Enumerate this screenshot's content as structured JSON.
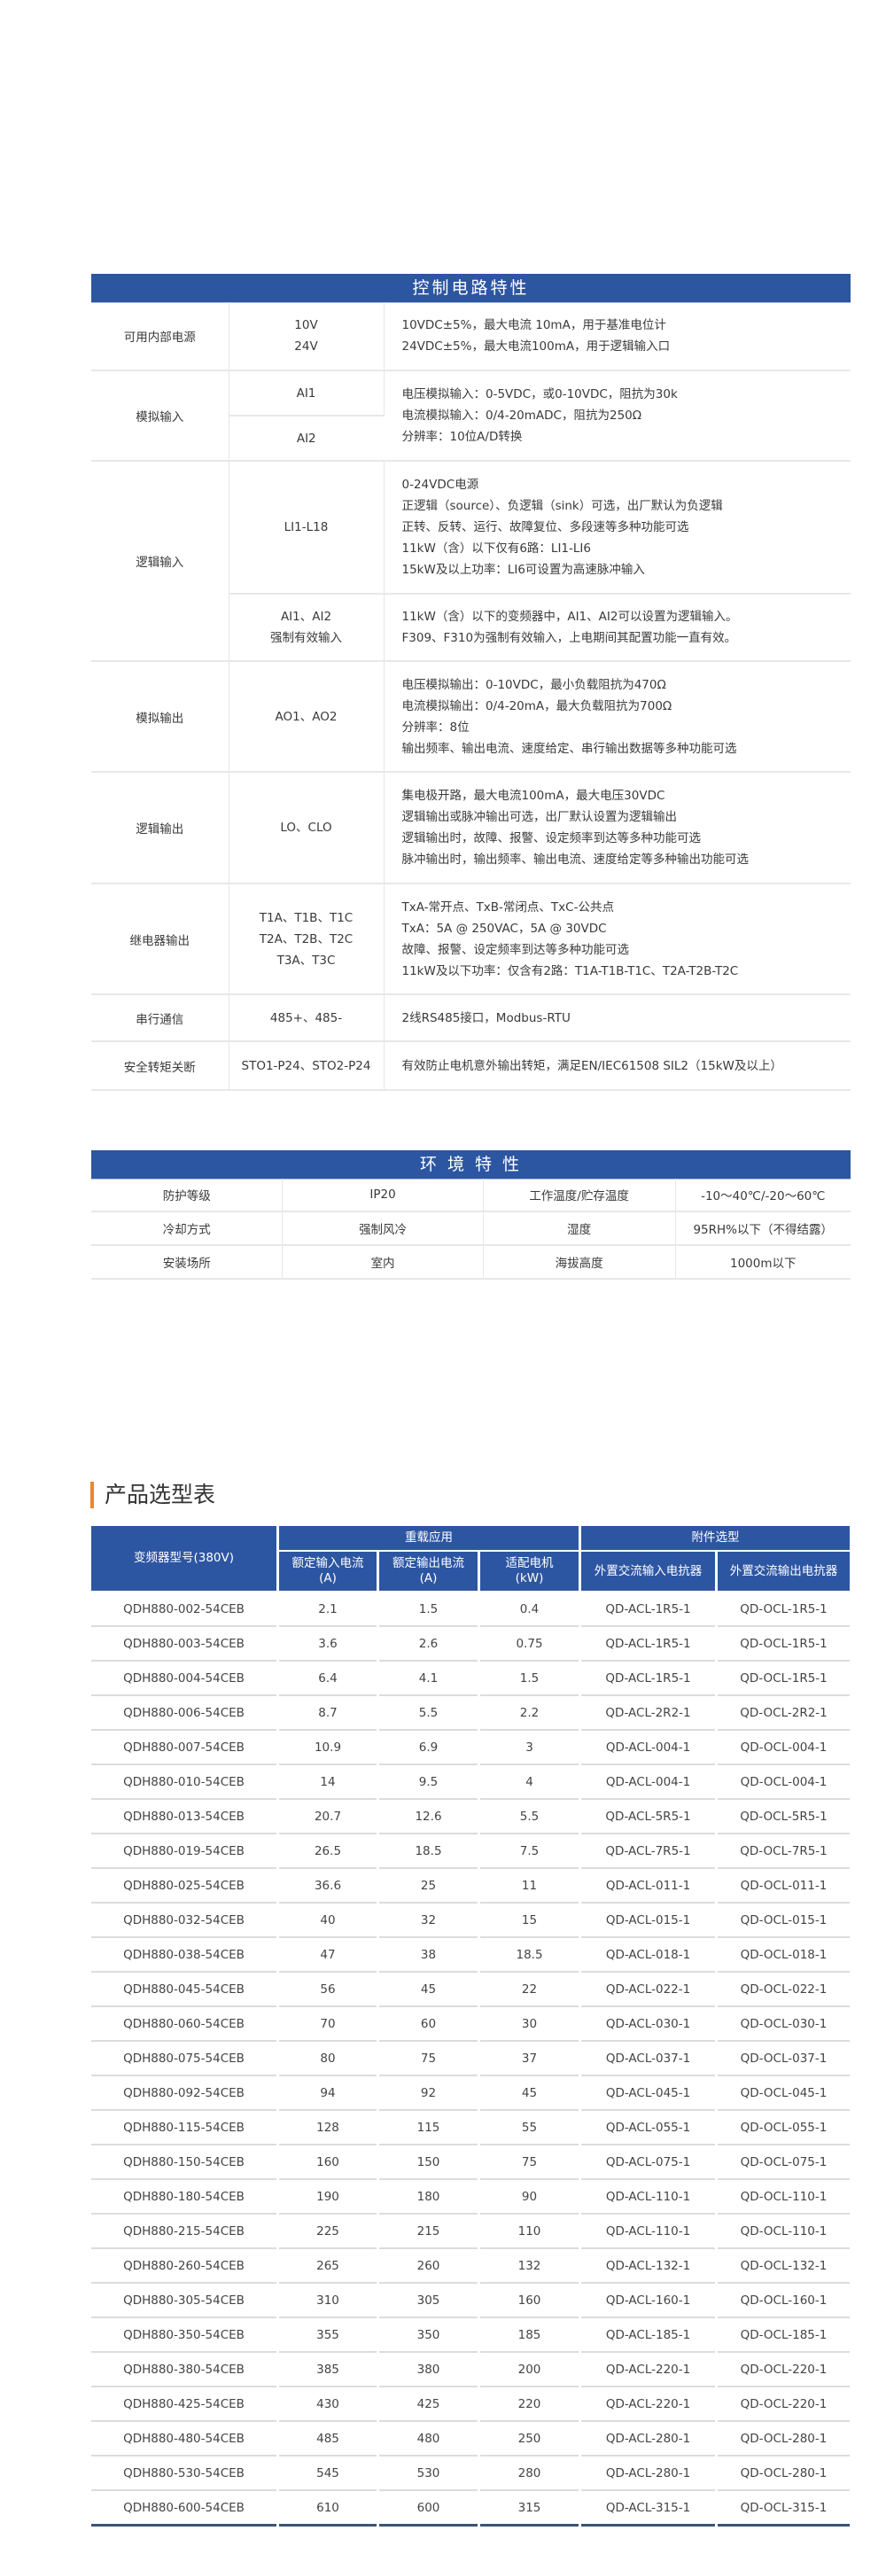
{
  "control": {
    "title": "控制电路特性",
    "power": {
      "label": "可用内部电源",
      "sub": [
        "10V",
        "24V"
      ],
      "desc": [
        "10VDC±5%，最大电流 10mA，用于基准电位计",
        "24VDC±5%，最大电流100mA，用于逻辑输入口"
      ]
    },
    "analog_in": {
      "label": "模拟输入",
      "sub": [
        "AI1",
        "AI2"
      ],
      "desc": [
        "电压模拟输入：0-5VDC，或0-10VDC，阻抗为30k",
        "电流模拟输入：0/4-20mADC，阻抗为250Ω",
        "分辨率：10位A/D转换"
      ]
    },
    "logic_in": {
      "label": "逻辑输入",
      "li": {
        "sub": "LI1-L18",
        "desc": [
          "0-24VDC电源",
          "正逻辑（source）、负逻辑（sink）可选，出厂默认为负逻辑",
          "正转、反转、运行、故障复位、多段速等多种功能可选",
          "11kW（含）以下仅有6路：LI1-LI6",
          "15kW及以上功率：LI6可设置为高速脉冲输入"
        ]
      },
      "ai": {
        "sub": [
          "AI1、AI2",
          "强制有效输入"
        ],
        "desc": [
          "11kW（含）以下的变频器中，AI1、AI2可以设置为逻辑输入。",
          "F309、F310为强制有效输入，上电期间其配置功能一直有效。"
        ]
      }
    },
    "analog_out": {
      "label": "模拟输出",
      "sub": "AO1、AO2",
      "desc": [
        "电压模拟输出：0-10VDC，最小负载阻抗为470Ω",
        "电流模拟输出：0/4-20mA，最大负载阻抗为700Ω",
        "分辨率：8位",
        "输出频率、输出电流、速度给定、串行输出数据等多种功能可选"
      ]
    },
    "logic_out": {
      "label": "逻辑输出",
      "sub": "LO、CLO",
      "desc": [
        "集电极开路，最大电流100mA，最大电压30VDC",
        "逻辑输出或脉冲输出可选，出厂默认设置为逻辑输出",
        "逻辑输出时，故障、报警、设定频率到达等多种功能可选",
        "脉冲输出时，输出频率、输出电流、速度给定等多种输出功能可选"
      ]
    },
    "relay": {
      "label": "继电器输出",
      "sub": [
        "T1A、T1B、T1C",
        "T2A、T2B、T2C",
        "T3A、T3C"
      ],
      "desc": [
        "TxA-常开点、TxB-常闭点、TxC-公共点",
        "TxA：5A @ 250VAC，5A @ 30VDC",
        "故障、报警、设定频率到达等多种功能可选",
        "11kW及以下功率：仅含有2路：T1A-T1B-T1C、T2A-T2B-T2C"
      ]
    },
    "serial": {
      "label": "串行通信",
      "sub": "485+、485-",
      "desc": "2线RS485接口，Modbus-RTU"
    },
    "safety": {
      "label": "安全转矩关断",
      "sub": "STO1-P24、STO2-P24",
      "desc": "有效防止电机意外输出转矩，满足EN/IEC61508 SIL2（15kW及以上）"
    }
  },
  "environment": {
    "title": "环 境 特 性",
    "rows": [
      [
        "防护等级",
        "IP20",
        "工作温度/贮存温度",
        "-10～40℃/-20～60℃"
      ],
      [
        "冷却方式",
        "强制风冷",
        "湿度",
        "95RH%以下（不得结露）"
      ],
      [
        "安装场所",
        "室内",
        "海拔高度",
        "1000m以下"
      ]
    ]
  },
  "selection": {
    "title": "产品选型表",
    "header": {
      "model": "变频器型号(380V)",
      "group_heavy": "重载应用",
      "group_acc": "附件选型",
      "cols": [
        [
          "额定输入电流",
          "(A)"
        ],
        [
          "额定输出电流",
          "(A)"
        ],
        [
          "适配电机",
          "(kW)"
        ],
        [
          "外置交流输入电抗器"
        ],
        [
          "外置交流输出电抗器"
        ]
      ]
    },
    "rows": [
      [
        "QDH880-002-54CEB",
        "2.1",
        "1.5",
        "0.4",
        "QD-ACL-1R5-1",
        "QD-OCL-1R5-1"
      ],
      [
        "QDH880-003-54CEB",
        "3.6",
        "2.6",
        "0.75",
        "QD-ACL-1R5-1",
        "QD-OCL-1R5-1"
      ],
      [
        "QDH880-004-54CEB",
        "6.4",
        "4.1",
        "1.5",
        "QD-ACL-1R5-1",
        "QD-OCL-1R5-1"
      ],
      [
        "QDH880-006-54CEB",
        "8.7",
        "5.5",
        "2.2",
        "QD-ACL-2R2-1",
        "QD-OCL-2R2-1"
      ],
      [
        "QDH880-007-54CEB",
        "10.9",
        "6.9",
        "3",
        "QD-ACL-004-1",
        "QD-OCL-004-1"
      ],
      [
        "QDH880-010-54CEB",
        "14",
        "9.5",
        "4",
        "QD-ACL-004-1",
        "QD-OCL-004-1"
      ],
      [
        "QDH880-013-54CEB",
        "20.7",
        "12.6",
        "5.5",
        "QD-ACL-5R5-1",
        "QD-OCL-5R5-1"
      ],
      [
        "QDH880-019-54CEB",
        "26.5",
        "18.5",
        "7.5",
        "QD-ACL-7R5-1",
        "QD-OCL-7R5-1"
      ],
      [
        "QDH880-025-54CEB",
        "36.6",
        "25",
        "11",
        "QD-ACL-011-1",
        "QD-OCL-011-1"
      ],
      [
        "QDH880-032-54CEB",
        "40",
        "32",
        "15",
        "QD-ACL-015-1",
        "QD-OCL-015-1"
      ],
      [
        "QDH880-038-54CEB",
        "47",
        "38",
        "18.5",
        "QD-ACL-018-1",
        "QD-OCL-018-1"
      ],
      [
        "QDH880-045-54CEB",
        "56",
        "45",
        "22",
        "QD-ACL-022-1",
        "QD-OCL-022-1"
      ],
      [
        "QDH880-060-54CEB",
        "70",
        "60",
        "30",
        "QD-ACL-030-1",
        "QD-OCL-030-1"
      ],
      [
        "QDH880-075-54CEB",
        "80",
        "75",
        "37",
        "QD-ACL-037-1",
        "QD-OCL-037-1"
      ],
      [
        "QDH880-092-54CEB",
        "94",
        "92",
        "45",
        "QD-ACL-045-1",
        "QD-OCL-045-1"
      ],
      [
        "QDH880-115-54CEB",
        "128",
        "115",
        "55",
        "QD-ACL-055-1",
        "QD-OCL-055-1"
      ],
      [
        "QDH880-150-54CEB",
        "160",
        "150",
        "75",
        "QD-ACL-075-1",
        "QD-OCL-075-1"
      ],
      [
        "QDH880-180-54CEB",
        "190",
        "180",
        "90",
        "QD-ACL-110-1",
        "QD-OCL-110-1"
      ],
      [
        "QDH880-215-54CEB",
        "225",
        "215",
        "110",
        "QD-ACL-110-1",
        "QD-OCL-110-1"
      ],
      [
        "QDH880-260-54CEB",
        "265",
        "260",
        "132",
        "QD-ACL-132-1",
        "QD-OCL-132-1"
      ],
      [
        "QDH880-305-54CEB",
        "310",
        "305",
        "160",
        "QD-ACL-160-1",
        "QD-OCL-160-1"
      ],
      [
        "QDH880-350-54CEB",
        "355",
        "350",
        "185",
        "QD-ACL-185-1",
        "QD-OCL-185-1"
      ],
      [
        "QDH880-380-54CEB",
        "385",
        "380",
        "200",
        "QD-ACL-220-1",
        "QD-OCL-220-1"
      ],
      [
        "QDH880-425-54CEB",
        "430",
        "425",
        "220",
        "QD-ACL-220-1",
        "QD-OCL-220-1"
      ],
      [
        "QDH880-480-54CEB",
        "485",
        "480",
        "250",
        "QD-ACL-280-1",
        "QD-OCL-280-1"
      ],
      [
        "QDH880-530-54CEB",
        "545",
        "530",
        "280",
        "QD-ACL-280-1",
        "QD-OCL-280-1"
      ],
      [
        "QDH880-600-54CEB",
        "610",
        "600",
        "315",
        "QD-ACL-315-1",
        "QD-OCL-315-1"
      ]
    ]
  },
  "colors": {
    "header_blue": "#2d56a2",
    "accent_orange": "#e8892b"
  }
}
